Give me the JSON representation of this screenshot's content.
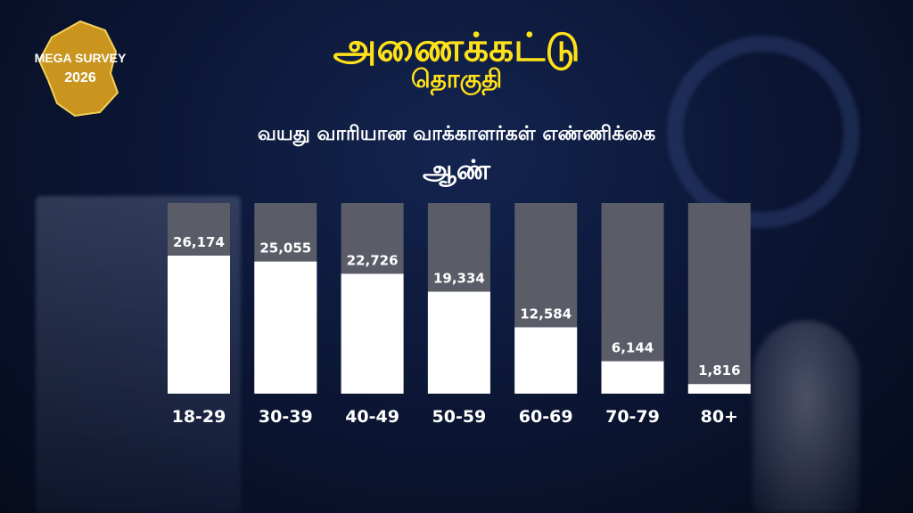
{
  "header": {
    "logo_text_line1": "MEGA SURVEY",
    "logo_text_line2": "2026",
    "constituency": "அணைக்கட்டு",
    "constituency_sub": "தொகுதி",
    "chart_title": "வயது வாரியான வாக்காளர்கள் எண்ணிக்கை",
    "gender_label": "ஆண்"
  },
  "colors": {
    "title_yellow": "#ffe11a",
    "bar_fill": "#ffffff",
    "bar_track": "#5a5d68",
    "background": "#0b1532"
  },
  "chart_data": {
    "type": "bar",
    "title": "வயது வாரியான வாக்காளர்கள் எண்ணிக்கை",
    "subtitle": "ஆண்",
    "categories": [
      "18-29",
      "30-39",
      "40-49",
      "50-59",
      "60-69",
      "70-79",
      "80+"
    ],
    "values": [
      26174,
      25055,
      22726,
      19334,
      12584,
      6144,
      1816
    ],
    "value_labels": [
      "26,174",
      "25,055",
      "22,726",
      "19,334",
      "12,584",
      "6,144",
      "1,816"
    ],
    "ylim": [
      0,
      30000
    ],
    "grid": false,
    "legend": "none"
  }
}
